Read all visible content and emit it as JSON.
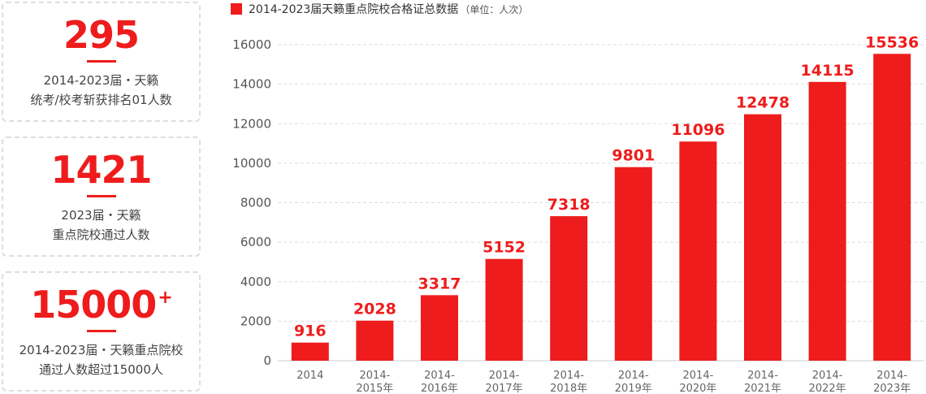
{
  "stats": [
    {
      "value": "295",
      "sup": "",
      "desc_lines": [
        "2014-2023届・天籁",
        "统考/校考斩获排名01人数"
      ]
    },
    {
      "value": "1421",
      "sup": "",
      "desc_lines": [
        "2023届・天籁",
        "重点院校通过人数"
      ]
    },
    {
      "value": "15000",
      "sup": "+",
      "desc_lines": [
        "2014-2023届・天籁重点院校",
        "通过人数超过15000人"
      ]
    }
  ],
  "legend": {
    "title": "2014-2023届天籁重点院校合格证总数据",
    "unit": "（单位：人次）"
  },
  "colors": {
    "accent": "#ee1c1c",
    "grid": "#dddddd",
    "axis": "#666666"
  },
  "chart_data": {
    "type": "bar",
    "title": "2014-2023届天籁重点院校合格证总数据",
    "subtitle": "（单位：人次）",
    "categories": [
      [
        "2014"
      ],
      [
        "2014-",
        "2015年"
      ],
      [
        "2014-",
        "2016年"
      ],
      [
        "2014-",
        "2017年"
      ],
      [
        "2014-",
        "2018年"
      ],
      [
        "2014-",
        "2019年"
      ],
      [
        "2014-",
        "2020年"
      ],
      [
        "2014-",
        "2021年"
      ],
      [
        "2014-",
        "2022年"
      ],
      [
        "2014-",
        "2023年"
      ]
    ],
    "values": [
      916,
      2028,
      3317,
      5152,
      7318,
      9801,
      11096,
      12478,
      14115,
      15536
    ],
    "data_labels": [
      "916",
      "2028",
      "3317",
      "5152",
      "7318",
      "9801",
      "11096",
      "12478",
      "14115",
      "15536"
    ],
    "yticks": [
      "0",
      "2000",
      "4000",
      "6000",
      "8000",
      "10000",
      "12000",
      "14000",
      "16000"
    ],
    "ylim": [
      0,
      16000
    ],
    "grid": true,
    "legend_position": "top-left"
  }
}
